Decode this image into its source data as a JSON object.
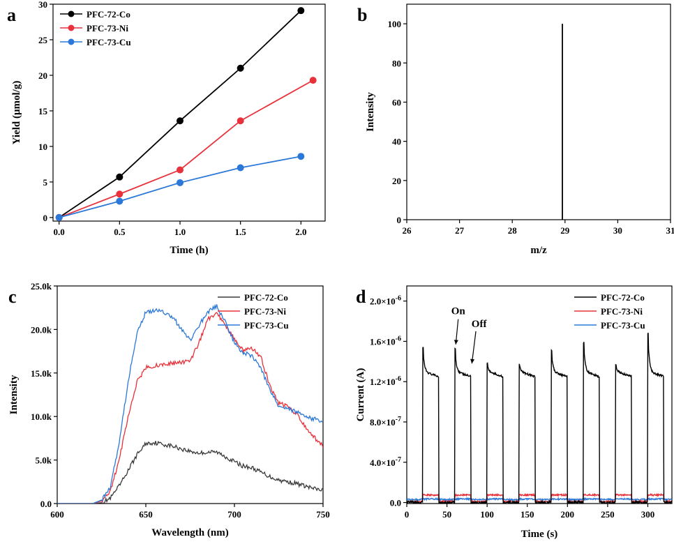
{
  "chart_data": [
    {
      "panel": "a",
      "type": "line",
      "xlabel": "Time (h)",
      "ylabel": "Yield (μmol/g)",
      "xlim": [
        -0.05,
        2.2
      ],
      "ylim": [
        -0.5,
        30
      ],
      "xticks": [
        "0.0",
        "0.5",
        "1.0",
        "1.5",
        "2.0"
      ],
      "xtick_values": [
        0,
        0.5,
        1.0,
        1.5,
        2.0
      ],
      "yticks": [
        "0",
        "5",
        "10",
        "15",
        "20",
        "25",
        "30"
      ],
      "ytick_values": [
        0,
        5,
        10,
        15,
        20,
        25,
        30
      ],
      "legend_position": "top-left",
      "series": [
        {
          "name": "PFC-72-Co",
          "color": "#000000",
          "x": [
            0,
            0.5,
            1.0,
            1.5,
            2.0
          ],
          "y": [
            0,
            5.7,
            13.6,
            21.0,
            29.1
          ]
        },
        {
          "name": "PFC-73-Ni",
          "color": "#e8313a",
          "x": [
            0,
            0.5,
            1.0,
            1.5,
            2.1
          ],
          "y": [
            0,
            3.3,
            6.7,
            13.6,
            19.3
          ]
        },
        {
          "name": "PFC-73-Cu",
          "color": "#2b78d8",
          "x": [
            0,
            0.5,
            1.0,
            1.5,
            2.0
          ],
          "y": [
            0,
            2.3,
            4.9,
            7.0,
            8.6
          ]
        }
      ]
    },
    {
      "panel": "b",
      "type": "bar",
      "xlabel": "m/z",
      "ylabel": "Intensity",
      "xlim": [
        26,
        31
      ],
      "ylim": [
        0,
        110
      ],
      "xticks": [
        "26",
        "27",
        "28",
        "29",
        "30",
        "31"
      ],
      "xtick_values": [
        26,
        27,
        28,
        29,
        30,
        31
      ],
      "yticks": [
        "0",
        "20",
        "40",
        "60",
        "80",
        "100"
      ],
      "ytick_values": [
        0,
        20,
        40,
        60,
        80,
        100
      ],
      "peaks": [
        {
          "x": 28.95,
          "y": 100
        }
      ]
    },
    {
      "panel": "c",
      "type": "line",
      "xlabel": "Wavelength (nm)",
      "ylabel": "Intensity",
      "xlim": [
        600,
        750
      ],
      "ylim": [
        0,
        25000
      ],
      "xticks": [
        "600",
        "650",
        "700",
        "750"
      ],
      "xtick_values": [
        600,
        650,
        700,
        750
      ],
      "yticks": [
        "0.0",
        "5.0k",
        "10.0k",
        "15.0k",
        "20.0k",
        "25.0k"
      ],
      "ytick_values": [
        0,
        5000,
        10000,
        15000,
        20000,
        25000
      ],
      "legend_position": "top-right",
      "series": [
        {
          "name": "PFC-72-Co",
          "color": "#3a3a3a",
          "x": [
            600,
            620,
            625,
            630,
            635,
            640,
            645,
            650,
            655,
            660,
            665,
            670,
            675,
            680,
            685,
            690,
            695,
            700,
            705,
            710,
            715,
            720,
            725,
            730,
            735,
            740,
            745,
            750
          ],
          "y": [
            0,
            0,
            100,
            600,
            2000,
            3800,
            5600,
            6900,
            7000,
            6800,
            6600,
            6300,
            6000,
            5800,
            5900,
            5900,
            5400,
            4800,
            4300,
            4100,
            3600,
            3100,
            2700,
            2500,
            2300,
            2000,
            1700,
            1500
          ]
        },
        {
          "name": "PFC-73-Ni",
          "color": "#e8313a",
          "x": [
            600,
            620,
            625,
            630,
            635,
            640,
            645,
            650,
            655,
            660,
            665,
            670,
            675,
            680,
            685,
            690,
            695,
            700,
            705,
            710,
            715,
            720,
            725,
            730,
            735,
            740,
            745,
            750
          ],
          "y": [
            0,
            0,
            300,
            1500,
            5000,
            10000,
            14000,
            15600,
            15800,
            16000,
            16100,
            16200,
            16300,
            18500,
            21200,
            21800,
            20500,
            18800,
            17600,
            17800,
            16800,
            13500,
            11500,
            11200,
            10300,
            8800,
            7600,
            6600
          ]
        },
        {
          "name": "PFC-73-Cu",
          "color": "#2b78d8",
          "x": [
            600,
            620,
            625,
            630,
            635,
            640,
            645,
            650,
            655,
            660,
            665,
            670,
            675,
            680,
            685,
            690,
            695,
            700,
            705,
            710,
            715,
            720,
            725,
            730,
            735,
            740,
            745,
            750
          ],
          "y": [
            0,
            0,
            400,
            2000,
            7000,
            14000,
            19500,
            22000,
            22200,
            22000,
            21500,
            20000,
            18800,
            20500,
            22000,
            22700,
            20800,
            18500,
            17300,
            17000,
            15500,
            13000,
            11200,
            11000,
            10500,
            10000,
            9700,
            9500
          ]
        }
      ]
    },
    {
      "panel": "d",
      "type": "line",
      "xlabel": "Time (s)",
      "ylabel": "Current (A)",
      "xlim": [
        0,
        330
      ],
      "ylim": [
        -1e-08,
        2.15e-06
      ],
      "xticks": [
        "0",
        "50",
        "100",
        "150",
        "200",
        "250",
        "300"
      ],
      "xtick_values": [
        0,
        50,
        100,
        150,
        200,
        250,
        300
      ],
      "yticks": [
        "0.0",
        "4.0×10<sup>-7</sup>",
        "8.0×10<sup>-7</sup>",
        "1.2×10<sup>-6</sup>",
        "1.6×10<sup>-6</sup>",
        "2.0×10<sup>-6</sup>"
      ],
      "ytick_labels": [
        [
          "0.0",
          ""
        ],
        [
          "4.0×10",
          "-7"
        ],
        [
          "8.0×10",
          "-7"
        ],
        [
          "1.2×10",
          "-6"
        ],
        [
          "1.6×10",
          "-6"
        ],
        [
          "2.0×10",
          "-6"
        ]
      ],
      "ytick_values": [
        0,
        4e-07,
        8e-07,
        1.2e-06,
        1.6e-06,
        2e-06
      ],
      "legend_position": "top-right",
      "annotations": [
        {
          "text": "On",
          "x": 64,
          "y": 1.87e-06
        },
        {
          "text": "Off",
          "x": 90,
          "y": 1.74e-06
        }
      ],
      "on_off_cycles": [
        {
          "on": 20,
          "off": 40,
          "peak": 1.53e-06
        },
        {
          "on": 60,
          "off": 80,
          "peak": 1.52e-06
        },
        {
          "on": 100,
          "off": 120,
          "peak": 1.38e-06
        },
        {
          "on": 140,
          "off": 160,
          "peak": 1.37e-06
        },
        {
          "on": 180,
          "off": 200,
          "peak": 1.51e-06
        },
        {
          "on": 220,
          "off": 240,
          "peak": 1.59e-06
        },
        {
          "on": 260,
          "off": 280,
          "peak": 1.37e-06
        },
        {
          "on": 300,
          "off": 320,
          "peak": 1.68e-06
        }
      ],
      "series": [
        {
          "name": "PFC-72-Co",
          "color": "#000000",
          "baseline": 0,
          "plateau": 1.3e-06
        },
        {
          "name": "PFC-73-Ni",
          "color": "#e8313a",
          "baseline": 1e-08,
          "plateau": 7.5e-08
        },
        {
          "name": "PFC-73-Cu",
          "color": "#2b78d8",
          "baseline": 3e-08,
          "plateau": 3.5e-08
        }
      ]
    }
  ],
  "panel_labels": [
    "a",
    "b",
    "c",
    "d"
  ]
}
